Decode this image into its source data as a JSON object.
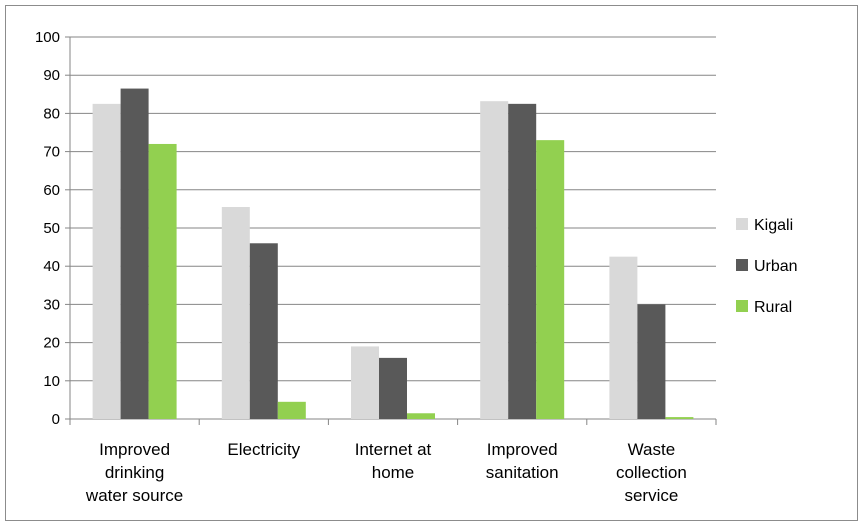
{
  "chart_data": {
    "type": "bar",
    "title": "",
    "xlabel": "",
    "ylabel": "",
    "ylim": [
      0,
      100
    ],
    "yticks": [
      0,
      10,
      20,
      30,
      40,
      50,
      60,
      70,
      80,
      90,
      100
    ],
    "grid": true,
    "legend_position": "right",
    "categories": [
      [
        "Improved",
        "drinking",
        "water source"
      ],
      [
        "Electricity"
      ],
      [
        "Internet at",
        "home"
      ],
      [
        "Improved",
        "sanitation"
      ],
      [
        "Waste",
        "collection",
        "service"
      ]
    ],
    "series": [
      {
        "name": "Kigali",
        "color": "#d9d9d9",
        "values": [
          82.5,
          55.5,
          19,
          83.2,
          42.5
        ]
      },
      {
        "name": "Urban",
        "color": "#595959",
        "values": [
          86.5,
          46,
          16,
          82.5,
          30
        ]
      },
      {
        "name": "Rural",
        "color": "#92d050",
        "values": [
          72,
          4.5,
          1.5,
          73,
          0.5
        ]
      }
    ]
  }
}
